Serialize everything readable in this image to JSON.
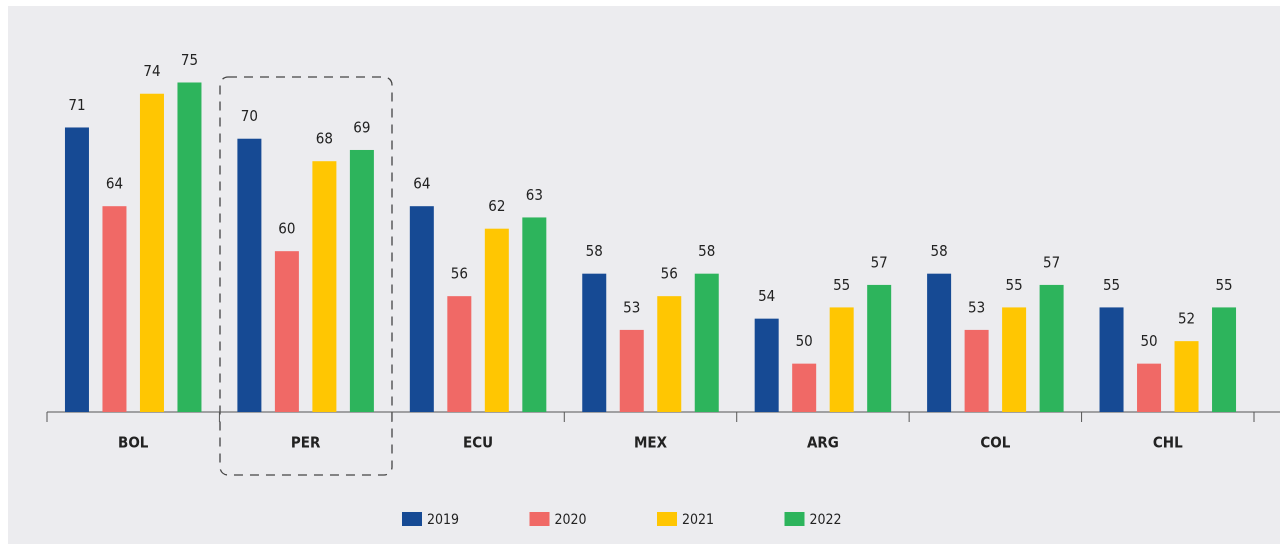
{
  "chart_data": {
    "type": "bar",
    "categories": [
      "BOL",
      "PER",
      "ECU",
      "MEX",
      "ARG",
      "COL",
      "CHL"
    ],
    "series": [
      {
        "name": "2019",
        "color": "#164a94",
        "values": [
          71,
          70,
          64,
          58,
          54,
          58,
          55
        ]
      },
      {
        "name": "2020",
        "color": "#f06966",
        "values": [
          64,
          60,
          56,
          53,
          50,
          53,
          50
        ]
      },
      {
        "name": "2021",
        "color": "#ffc602",
        "values": [
          74,
          68,
          62,
          56,
          55,
          55,
          52
        ]
      },
      {
        "name": "2022",
        "color": "#2db45c",
        "values": [
          75,
          69,
          63,
          58,
          57,
          57,
          55
        ]
      }
    ],
    "ylim": [
      45.7,
      77
    ],
    "legend": "bottom"
  }
}
